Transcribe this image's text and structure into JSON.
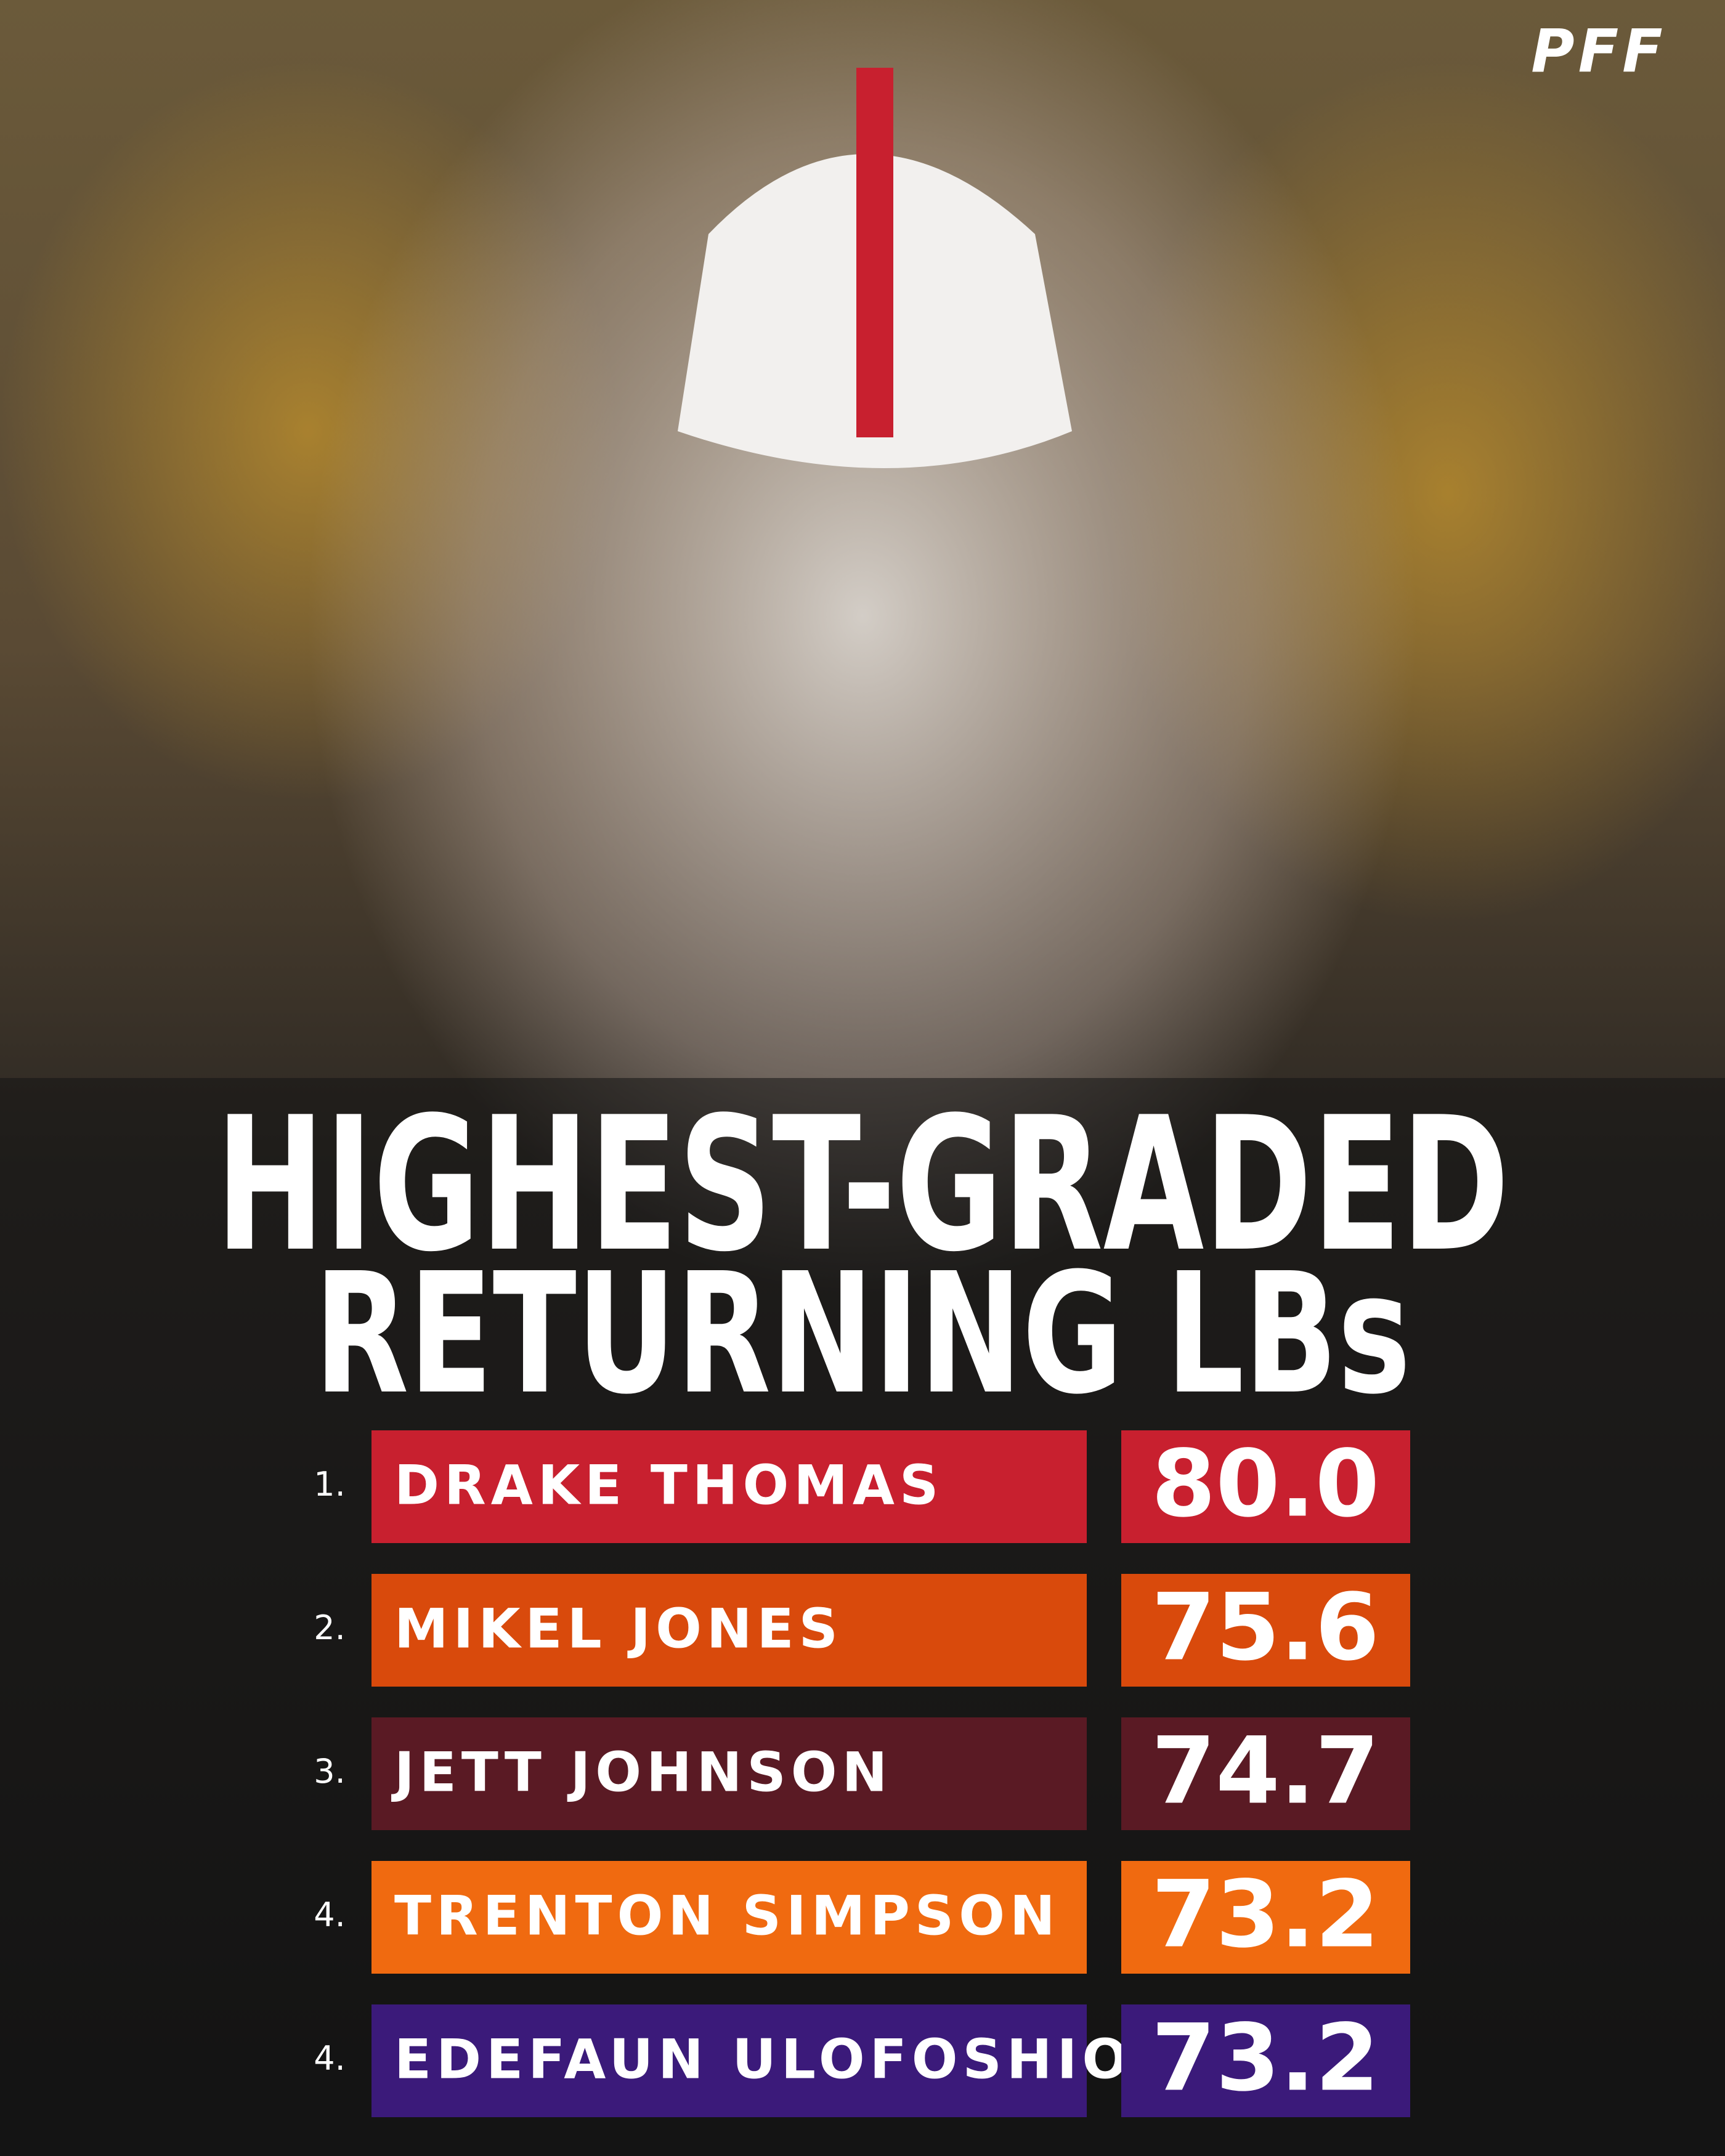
{
  "logo": "PFF",
  "title": {
    "line1": "HIGHEST-GRADED",
    "line2": "RETURNING LBs"
  },
  "rows": [
    {
      "rank": "1.",
      "name": "DRAKE THOMAS",
      "grade": "80.0",
      "color": "#c8202f"
    },
    {
      "rank": "2.",
      "name": "MIKEL JONES",
      "grade": "75.6",
      "color": "#d94a0c"
    },
    {
      "rank": "3.",
      "name": "JETT JOHNSON",
      "grade": "74.7",
      "color": "#5a1a24"
    },
    {
      "rank": "4.",
      "name": "TRENTON SIMPSON",
      "grade": "73.2",
      "color": "#f06a10"
    },
    {
      "rank": "4.",
      "name": "EDEFAUN ULOFOSHIO",
      "grade": "73.2",
      "color": "#3b1a7a"
    }
  ]
}
